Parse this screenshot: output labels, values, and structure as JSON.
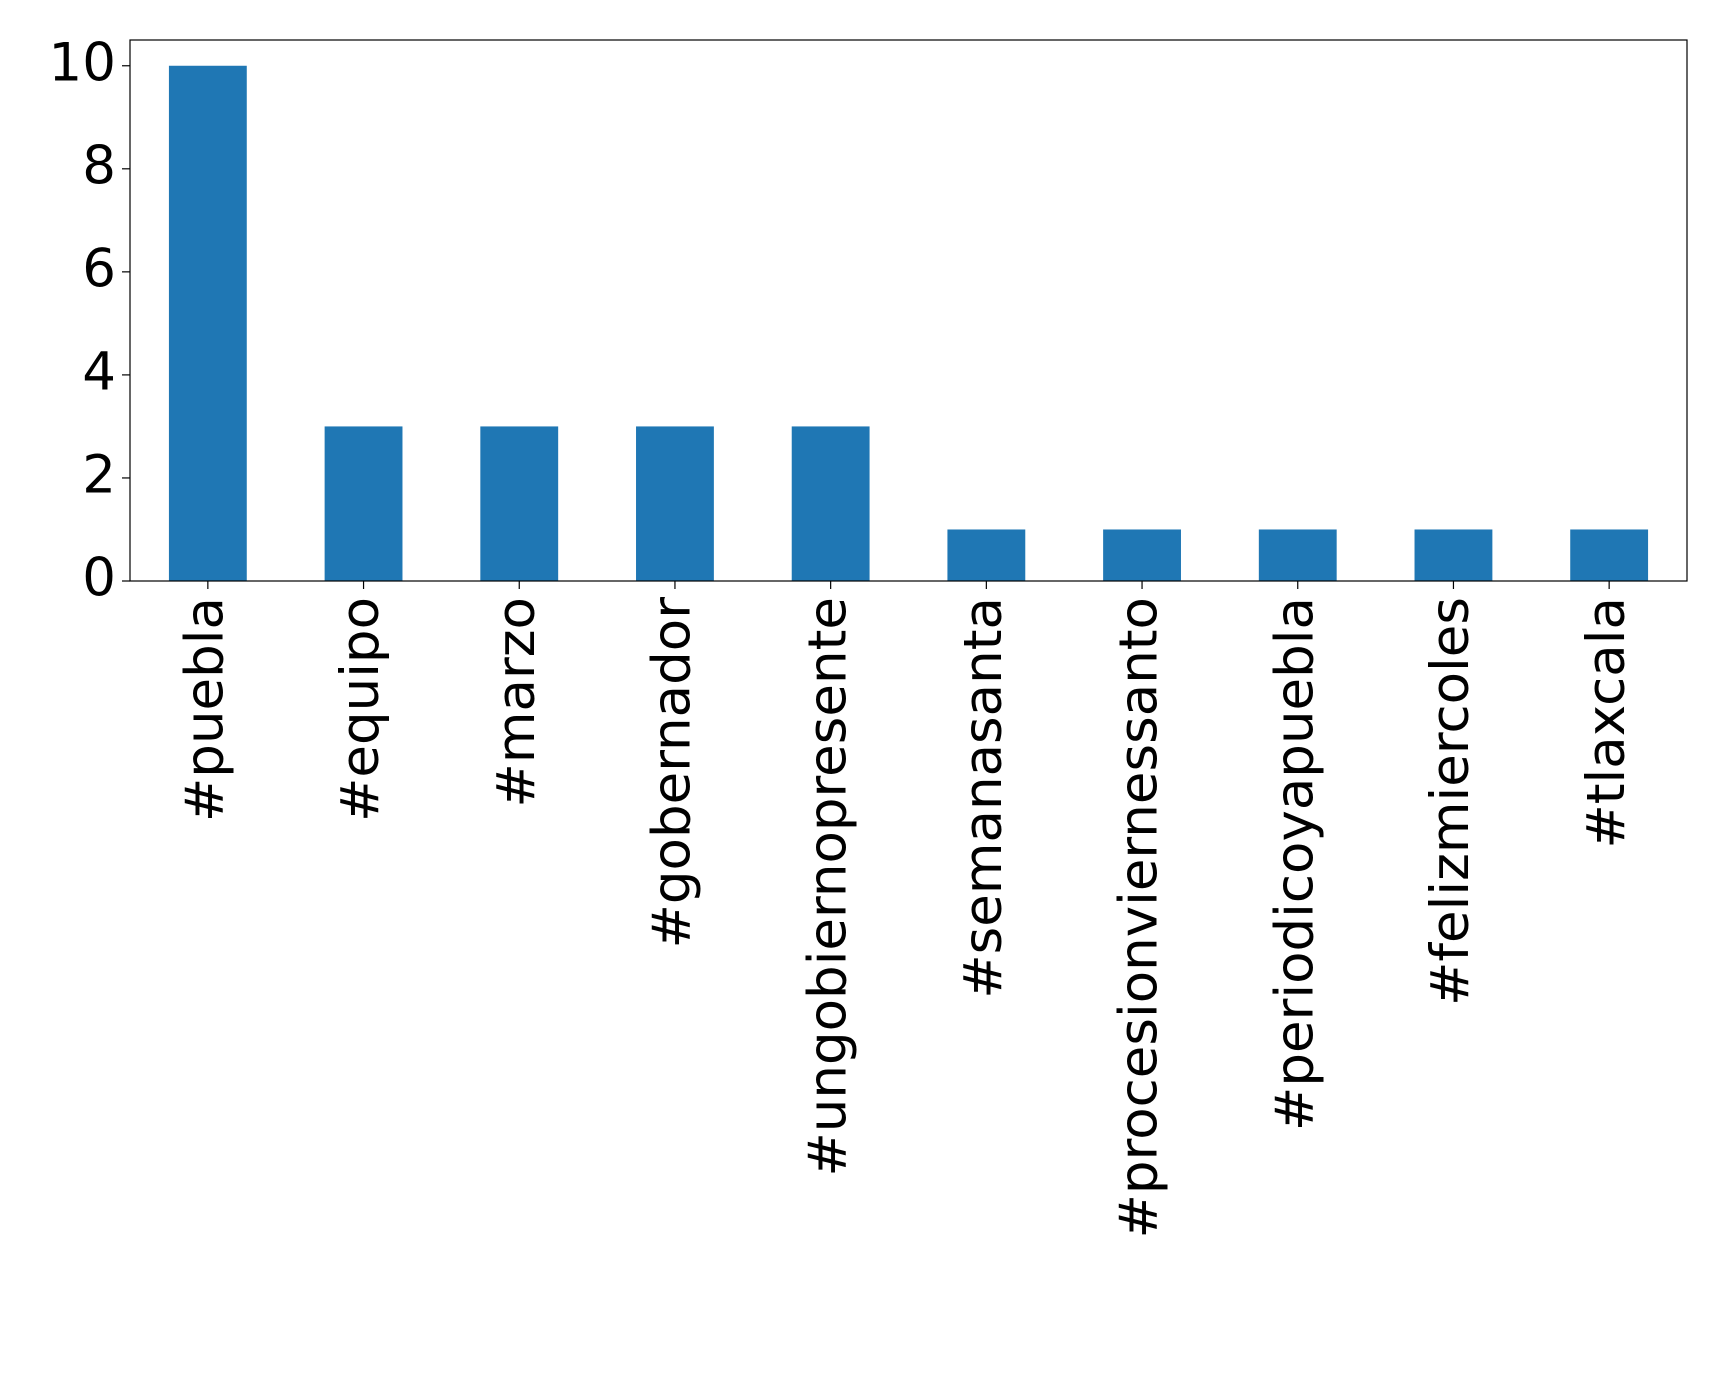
{
  "chart_data": {
    "type": "bar",
    "categories": [
      "#puebla",
      "#equipo",
      "#marzo",
      "#gobernador",
      "#ungobiernopresente",
      "#semanasanta",
      "#procesionviernessanto",
      "#periodicoyapuebla",
      "#felizmiercoles",
      "#tlaxcala"
    ],
    "values": [
      10,
      3,
      3,
      3,
      3,
      1,
      1,
      1,
      1,
      1
    ],
    "color": "#1f77b4",
    "ylim": [
      0,
      10.5
    ],
    "yticks": [
      0,
      2,
      4,
      6,
      8,
      10
    ],
    "grid": false
  }
}
